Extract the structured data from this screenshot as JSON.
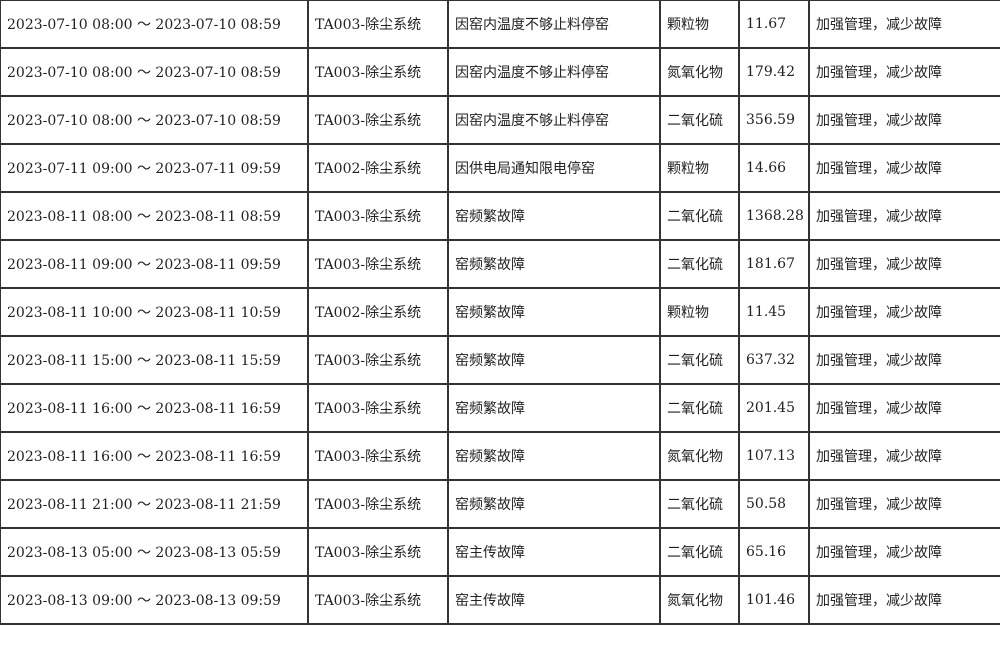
{
  "rows": [
    {
      "period": "2023-07-10 08:00 ～ 2023-07-10 08:59",
      "system": "TA003-除尘系统",
      "reason": "因窑内温度不够止料停窑",
      "pollutant": "颗粒物",
      "value": "11.67",
      "measure": "加强管理，减少故障"
    },
    {
      "period": "2023-07-10 08:00 ～ 2023-07-10 08:59",
      "system": "TA003-除尘系统",
      "reason": "因窑内温度不够止料停窑",
      "pollutant": "氮氧化物",
      "value": "179.42",
      "measure": "加强管理，减少故障"
    },
    {
      "period": "2023-07-10 08:00 ～ 2023-07-10 08:59",
      "system": "TA003-除尘系统",
      "reason": "因窑内温度不够止料停窑",
      "pollutant": "二氧化硫",
      "value": "356.59",
      "measure": "加强管理，减少故障"
    },
    {
      "period": "2023-07-11 09:00 ～ 2023-07-11 09:59",
      "system": "TA002-除尘系统",
      "reason": "因供电局通知限电停窑",
      "pollutant": "颗粒物",
      "value": "14.66",
      "measure": "加强管理，减少故障"
    },
    {
      "period": "2023-08-11 08:00 ～ 2023-08-11 08:59",
      "system": "TA003-除尘系统",
      "reason": "窑频繁故障",
      "pollutant": "二氧化硫",
      "value": "1368.28",
      "measure": "加强管理，减少故障"
    },
    {
      "period": "2023-08-11 09:00 ～ 2023-08-11 09:59",
      "system": "TA003-除尘系统",
      "reason": "窑频繁故障",
      "pollutant": "二氧化硫",
      "value": "181.67",
      "measure": "加强管理，减少故障"
    },
    {
      "period": "2023-08-11 10:00 ～ 2023-08-11 10:59",
      "system": "TA002-除尘系统",
      "reason": "窑频繁故障",
      "pollutant": "颗粒物",
      "value": "11.45",
      "measure": "加强管理，减少故障"
    },
    {
      "period": "2023-08-11 15:00 ～ 2023-08-11 15:59",
      "system": "TA003-除尘系统",
      "reason": "窑频繁故障",
      "pollutant": "二氧化硫",
      "value": "637.32",
      "measure": "加强管理，减少故障"
    },
    {
      "period": "2023-08-11 16:00 ～ 2023-08-11 16:59",
      "system": "TA003-除尘系统",
      "reason": "窑频繁故障",
      "pollutant": "二氧化硫",
      "value": "201.45",
      "measure": "加强管理，减少故障"
    },
    {
      "period": "2023-08-11 16:00 ～ 2023-08-11 16:59",
      "system": "TA003-除尘系统",
      "reason": "窑频繁故障",
      "pollutant": "氮氧化物",
      "value": "107.13",
      "measure": "加强管理，减少故障"
    },
    {
      "period": "2023-08-11 21:00 ～ 2023-08-11 21:59",
      "system": "TA003-除尘系统",
      "reason": "窑频繁故障",
      "pollutant": "二氧化硫",
      "value": "50.58",
      "measure": "加强管理，减少故障"
    },
    {
      "period": "2023-08-13 05:00 ～ 2023-08-13 05:59",
      "system": "TA003-除尘系统",
      "reason": "窑主传故障",
      "pollutant": "二氧化硫",
      "value": "65.16",
      "measure": "加强管理，减少故障"
    },
    {
      "period": "2023-08-13 09:00 ～ 2023-08-13 09:59",
      "system": "TA003-除尘系统",
      "reason": "窑主传故障",
      "pollutant": "氮氧化物",
      "value": "101.46",
      "measure": "加强管理，减少故障"
    }
  ]
}
